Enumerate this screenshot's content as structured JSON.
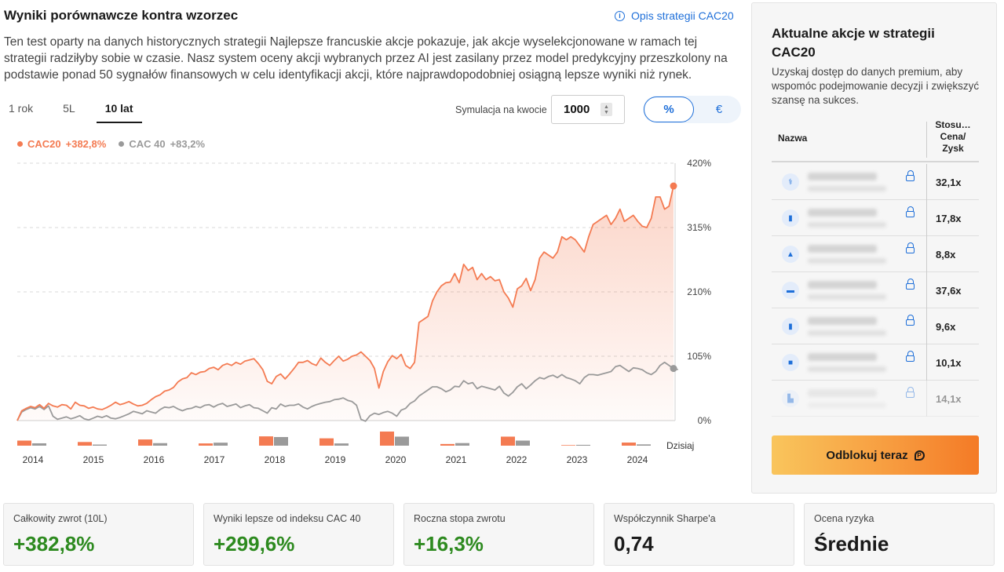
{
  "header": {
    "title": "Wyniki porównawcze kontra wzorzec",
    "strategy_link": "Opis strategii CAC20",
    "description": "Ten test oparty na danych historycznych strategii Najlepsze francuskie akcje pokazuje, jak akcje wyselekcjonowane w ramach tej strategii radziłyby sobie w czasie. Nasz system oceny akcji wybranych przez AI jest zasilany przez model predykcyjny przeszkolony na podstawie ponad 50 sygnałów finansowych w celu identyfikacji akcji, które najprawdopodobniej osiągną lepsze wyniki niż rynek."
  },
  "tabs": [
    {
      "label": "1 rok",
      "active": false
    },
    {
      "label": "5L",
      "active": false
    },
    {
      "label": "10 lat",
      "active": true
    }
  ],
  "simulation": {
    "label": "Symulacja na kwocie",
    "value": "1000"
  },
  "toggle": {
    "percent": "%",
    "euro": "€"
  },
  "legend": {
    "cac20_name": "CAC20",
    "cac20_value": "+382,8%",
    "cac40_name": "CAC 40",
    "cac40_value": "+83,2%"
  },
  "today_label": "Dzisiaj",
  "chart_data": {
    "type": "line",
    "y_ticks": [
      "420%",
      "315%",
      "210%",
      "105%",
      "0%"
    ],
    "ylim": [
      0,
      420
    ],
    "grid": true,
    "colors": {
      "cac20": "#f47b52",
      "cac40": "#9a9a9a"
    },
    "series": [
      {
        "name": "CAC20",
        "values": [
          0,
          16,
          20,
          23,
          21,
          26,
          20,
          28,
          24,
          22,
          26,
          25,
          19,
          30,
          25,
          24,
          20,
          22,
          19,
          18,
          21,
          25,
          30,
          26,
          28,
          31,
          27,
          24,
          25,
          28,
          34,
          39,
          42,
          48,
          50,
          54,
          63,
          68,
          70,
          78,
          75,
          79,
          80,
          85,
          87,
          83,
          90,
          93,
          90,
          95,
          92,
          97,
          99,
          101,
          93,
          83,
          64,
          60,
          72,
          76,
          68,
          76,
          85,
          95,
          95,
          98,
          93,
          90,
          102,
          95,
          90,
          98,
          105,
          97,
          100,
          105,
          107,
          112,
          105,
          98,
          85,
          53,
          80,
          96,
          106,
          101,
          108,
          90,
          85,
          95,
          160,
          165,
          170,
          195,
          210,
          220,
          225,
          226,
          240,
          225,
          255,
          245,
          250,
          230,
          240,
          230,
          235,
          228,
          230,
          210,
          200,
          185,
          215,
          220,
          232,
          212,
          230,
          265,
          275,
          270,
          265,
          275,
          300,
          295,
          300,
          295,
          285,
          275,
          300,
          320,
          325,
          330,
          335,
          320,
          330,
          345,
          325,
          330,
          335,
          325,
          317,
          315,
          330,
          365,
          365,
          345,
          350,
          382.8
        ]
      },
      {
        "name": "CAC 40",
        "values": [
          0,
          14,
          18,
          21,
          19,
          23,
          18,
          24,
          7,
          2,
          4,
          6,
          3,
          5,
          8,
          3,
          1,
          4,
          7,
          5,
          8,
          4,
          3,
          5,
          8,
          11,
          15,
          13,
          11,
          16,
          14,
          12,
          18,
          22,
          21,
          23,
          19,
          16,
          19,
          20,
          23,
          21,
          25,
          26,
          22,
          26,
          28,
          23,
          25,
          27,
          21,
          24,
          26,
          21,
          20,
          16,
          12,
          21,
          19,
          27,
          23,
          25,
          25,
          27,
          22,
          19,
          23,
          26,
          28,
          30,
          31,
          34,
          35,
          37,
          33,
          31,
          25,
          2,
          -1,
          8,
          12,
          10,
          13,
          15,
          12,
          7,
          17,
          20,
          28,
          32,
          40,
          45,
          50,
          55,
          55,
          52,
          47,
          50,
          56,
          55,
          65,
          60,
          62,
          52,
          56,
          54,
          52,
          50,
          56,
          45,
          40,
          46,
          55,
          60,
          52,
          58,
          65,
          70,
          68,
          72,
          74,
          70,
          75,
          70,
          68,
          65,
          60,
          70,
          75,
          75,
          74,
          76,
          78,
          80,
          88,
          90,
          85,
          80,
          86,
          85,
          83,
          78,
          75,
          80,
          90,
          95,
          90,
          85,
          83.2
        ]
      }
    ],
    "annual": {
      "years": [
        "2014",
        "2015",
        "2016",
        "2017",
        "2018",
        "2019",
        "2020",
        "2021",
        "2022",
        "2023",
        "2024"
      ],
      "cac20": [
        9,
        6.5,
        11,
        4,
        16.5,
        13,
        25,
        3,
        16,
        1,
        5.5
      ],
      "cac40": [
        4.2,
        2,
        4.5,
        5.3,
        15.3,
        4,
        16,
        4.6,
        9,
        1.5,
        2.3
      ]
    }
  },
  "panel": {
    "title": "Aktualne akcje w strategii CAC20",
    "description": "Uzyskaj dostęp do danych premium, aby wspomóc podejmowanie decyzji i zwiększyć szansę na sukces.",
    "col_name": "Nazwa",
    "col_ratio": "Stosu… Cena/ Zysk",
    "rows": [
      {
        "icon": "stethoscope-icon",
        "glyph": "⚕",
        "ratio": "32,1x"
      },
      {
        "icon": "phone-icon",
        "glyph": "▮",
        "ratio": "17,8x"
      },
      {
        "icon": "building-icon",
        "glyph": "▲",
        "ratio": "8,8x"
      },
      {
        "icon": "monitor-icon",
        "glyph": "▬",
        "ratio": "37,6x"
      },
      {
        "icon": "phone-icon",
        "glyph": "▮",
        "ratio": "9,6x"
      },
      {
        "icon": "truck-icon",
        "glyph": "■",
        "ratio": "10,1x"
      },
      {
        "icon": "factory-icon",
        "glyph": "▙",
        "ratio": "14,1x"
      }
    ],
    "button": "Odblokuj teraz"
  },
  "metrics": [
    {
      "label": "Całkowity zwrot (10L)",
      "value": "+382,8%",
      "tone": "green"
    },
    {
      "label": "Wyniki lepsze od indeksu CAC 40",
      "value": "+299,6%",
      "tone": "green"
    },
    {
      "label": "Roczna stopa zwrotu",
      "value": "+16,3%",
      "tone": "green"
    },
    {
      "label": "Współczynnik Sharpe'a",
      "value": "0,74",
      "tone": "dark"
    },
    {
      "label": "Ocena ryzyka",
      "value": "Średnie",
      "tone": "dark"
    }
  ]
}
